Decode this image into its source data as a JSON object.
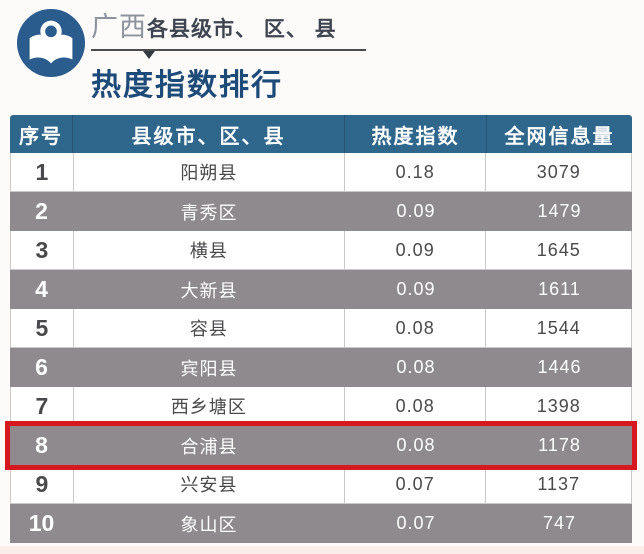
{
  "header": {
    "region": "广西",
    "title_rest": "各县级市、 区、 县",
    "subtitle": "热度指数排行",
    "icon": "reading-book-icon"
  },
  "chart_data": {
    "type": "table",
    "title": "广西各县级市、区、县 热度指数排行",
    "columns": [
      "序号",
      "县级市、区、县",
      "热度指数",
      "全网信息量"
    ],
    "rows": [
      [
        "1",
        "阳朔县",
        "0.18",
        "3079"
      ],
      [
        "2",
        "青秀区",
        "0.09",
        "1479"
      ],
      [
        "3",
        "横县",
        "0.09",
        "1645"
      ],
      [
        "4",
        "大新县",
        "0.09",
        "1611"
      ],
      [
        "5",
        "容县",
        "0.08",
        "1544"
      ],
      [
        "6",
        "宾阳县",
        "0.08",
        "1446"
      ],
      [
        "7",
        "西乡塘区",
        "0.08",
        "1398"
      ],
      [
        "8",
        "合浦县",
        "0.08",
        "1178"
      ],
      [
        "9",
        "兴安县",
        "0.07",
        "1137"
      ],
      [
        "10",
        "象山区",
        "0.07",
        "747"
      ]
    ],
    "highlighted_rank": "8",
    "layout_hints": "zebra table, even ranks on gray background with white text, rank 8 outlined in red"
  },
  "colors": {
    "table_header_bg": "#2f678c",
    "alt_row_bg": "#8e8a8e",
    "highlight_border": "#d6191f",
    "subtitle_text": "#1d4b79",
    "icon_bg": "#2a5c8e",
    "row_text": "#4a4a4c",
    "grid_border": "#c9c9c9"
  }
}
